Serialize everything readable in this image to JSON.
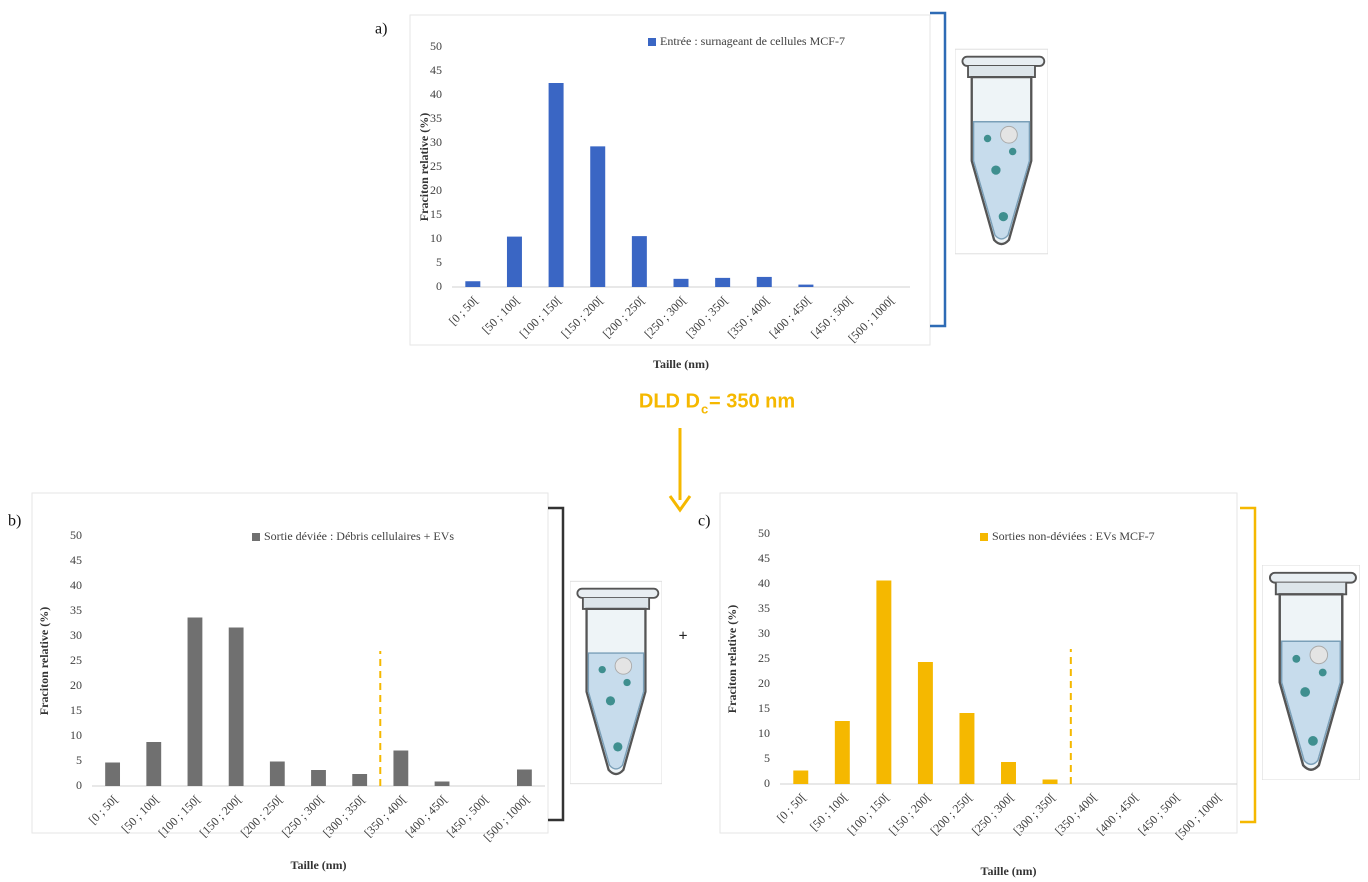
{
  "chart_data": [
    {
      "type": "bar",
      "label": "a)",
      "xlabel": "Taille (nm)",
      "ylabel": "Fraciton relative (%)",
      "categories": [
        "[0 ; 50[",
        "[50 ; 100[",
        "[100 ; 150[",
        "[150 ; 200[",
        "[200 ; 250[",
        "[250 ; 300[",
        "[300 ; 350[",
        "[350 ; 400[",
        "[400 ; 450[",
        "[450 ; 500[",
        "[500 ; 1000["
      ],
      "series": [
        {
          "name": "Entrée : surnageant de cellules MCF-7",
          "color": "#3a66c4",
          "values": [
            1.2,
            10.5,
            42.5,
            29.3,
            10.6,
            1.7,
            1.9,
            2.1,
            0.5,
            0,
            0
          ]
        }
      ],
      "ylim": [
        0,
        50
      ],
      "yticks": [
        0,
        5,
        10,
        15,
        20,
        25,
        30,
        35,
        40,
        45,
        50
      ],
      "grid": false,
      "legend": "top-right"
    },
    {
      "type": "bar",
      "label": "b)",
      "xlabel": "Taille (nm)",
      "ylabel": "Fraciton relative (%)",
      "categories": [
        "[0 ; 50[",
        "[50 ; 100[",
        "[100 ; 150[",
        "[150 ; 200[",
        "[200 ; 250[",
        "[250 ; 300[",
        "[300 ; 350[",
        "[350 ; 400[",
        "[400 ; 450[",
        "[450 ; 500[",
        "[500 ; 1000["
      ],
      "series": [
        {
          "name": "Sortie déviée : Débris cellulaires + EVs",
          "color": "#707070",
          "values": [
            4.7,
            8.8,
            33.7,
            31.7,
            4.9,
            3.2,
            2.4,
            7.1,
            0.9,
            0,
            3.3
          ]
        }
      ],
      "ylim": [
        0,
        50
      ],
      "yticks": [
        0,
        5,
        10,
        15,
        20,
        25,
        30,
        35,
        40,
        45,
        50
      ],
      "grid": false,
      "legend": "top-right"
    },
    {
      "type": "bar",
      "label": "c)",
      "xlabel": "Taille (nm)",
      "ylabel": "Fraciton relative (%)",
      "categories": [
        "[0 ; 50[",
        "[50 ; 100[",
        "[100 ; 150[",
        "[150 ; 200[",
        "[200 ; 250[",
        "[250 ; 300[",
        "[300 ; 350[",
        "[350 ; 400[",
        "[400 ; 450[",
        "[450 ; 500[",
        "[500 ; 1000["
      ],
      "series": [
        {
          "name": "Sorties non-déviées : EVs MCF-7",
          "color": "#f5b800",
          "values": [
            2.7,
            12.6,
            40.7,
            24.4,
            14.2,
            4.4,
            0.9,
            0,
            0,
            0,
            0
          ]
        }
      ],
      "ylim": [
        0,
        50
      ],
      "yticks": [
        0,
        5,
        10,
        15,
        20,
        25,
        30,
        35,
        40,
        45,
        50
      ],
      "grid": false,
      "legend": "top-right"
    }
  ],
  "separation": {
    "text": "DLD D",
    "subscript": "c",
    "rest": " = 350 nm"
  },
  "plus": "+"
}
